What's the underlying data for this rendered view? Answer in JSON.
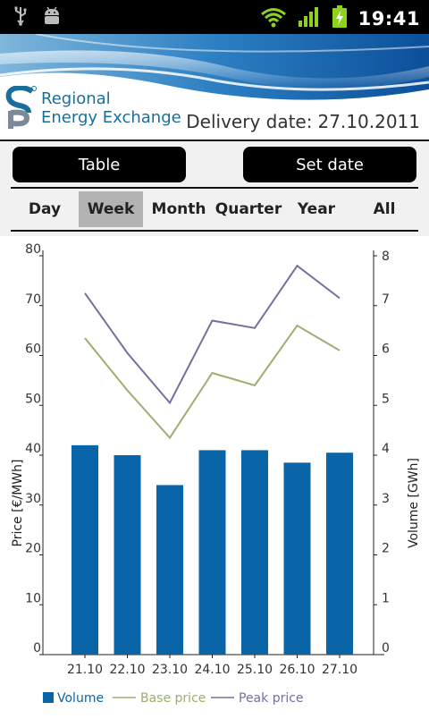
{
  "status_bar": {
    "time": "19:41",
    "icons": [
      "usb-icon",
      "android-debug-icon",
      "wifi-icon",
      "signal-icon",
      "battery-charging-icon"
    ]
  },
  "header": {
    "logo_line1": "Regional",
    "logo_line2": "Energy Exchange",
    "delivery_label": "Delivery date:",
    "delivery_value": "27.10.2011"
  },
  "buttons": {
    "table_label": "Table",
    "set_date_label": "Set date"
  },
  "tabs": [
    {
      "label": "Day",
      "active": false
    },
    {
      "label": "Week",
      "active": true
    },
    {
      "label": "Month",
      "active": false
    },
    {
      "label": "Quarter",
      "active": false
    },
    {
      "label": "Year",
      "active": false
    },
    {
      "label": "All",
      "active": false
    }
  ],
  "colors": {
    "bar": "#0a65a8",
    "base_price": "#9aaf6e",
    "peak_price": "#7b6c9c",
    "accent": "#1a6e9c"
  },
  "chart_data": {
    "type": "bar",
    "categories": [
      "21.10",
      "22.10",
      "23.10",
      "24.10",
      "25.10",
      "26.10",
      "27.10"
    ],
    "ylabel": "Price [€/MWh]",
    "y2label": "Volume [GWh]",
    "ylim": [
      0,
      80
    ],
    "y2lim": [
      0,
      8
    ],
    "yticks": [
      0,
      10,
      20,
      30,
      40,
      50,
      60,
      70,
      80
    ],
    "y2ticks": [
      0,
      1,
      2,
      3,
      4,
      5,
      6,
      7,
      8
    ],
    "series": [
      {
        "name": "Volume",
        "kind": "bar",
        "axis": "right",
        "values": [
          4.2,
          4.0,
          3.4,
          4.1,
          4.1,
          3.85,
          4.05
        ]
      },
      {
        "name": "Base price",
        "kind": "line",
        "axis": "left",
        "values": [
          63.5,
          53.0,
          43.5,
          56.5,
          54.0,
          66.0,
          61.0
        ]
      },
      {
        "name": "Peak price",
        "kind": "line",
        "axis": "left",
        "values": [
          72.5,
          60.5,
          50.5,
          67.0,
          65.5,
          78.0,
          71.5
        ]
      }
    ],
    "legend_position": "bottom",
    "grid": false
  }
}
